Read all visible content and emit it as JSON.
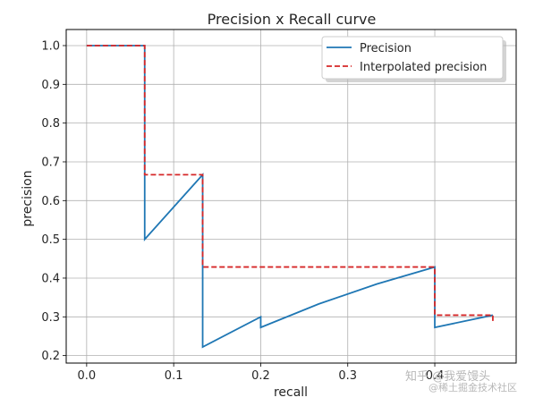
{
  "chart_data": {
    "type": "line",
    "title": "Precision x Recall curve",
    "xlabel": "recall",
    "ylabel": "precision",
    "xlim": [
      -0.0235,
      0.4935
    ],
    "ylim": [
      0.1807,
      1.0415
    ],
    "xticks": [
      0.0,
      0.1,
      0.2,
      0.3,
      0.4
    ],
    "xtick_labels": [
      "0.0",
      "0.1",
      "0.2",
      "0.3",
      "0.4"
    ],
    "yticks": [
      0.2,
      0.3,
      0.4,
      0.5,
      0.6,
      0.7,
      0.8,
      0.9,
      1.0
    ],
    "ytick_labels": [
      "0.2",
      "0.3",
      "0.4",
      "0.5",
      "0.6",
      "0.7",
      "0.8",
      "0.9",
      "1.0"
    ],
    "grid": true,
    "legend_position": "top-right",
    "series": [
      {
        "name": "Precision",
        "color": "#1f77b4",
        "style": "solid",
        "x": [
          0.0,
          0.0667,
          0.0667,
          0.1333,
          0.1333,
          0.2,
          0.2,
          0.2667,
          0.3333,
          0.4,
          0.4,
          0.4667
        ],
        "y": [
          1.0,
          1.0,
          0.5,
          0.6667,
          0.2222,
          0.3,
          0.2727,
          0.3333,
          0.3846,
          0.4286,
          0.2727,
          0.3043
        ]
      },
      {
        "name": "Interpolated precision",
        "color": "#d62728",
        "style": "dashed",
        "x": [
          0.0,
          0.0667,
          0.0667,
          0.1333,
          0.1333,
          0.4,
          0.4,
          0.4667,
          0.4667
        ],
        "y": [
          1.0,
          1.0,
          0.6667,
          0.6667,
          0.4286,
          0.4286,
          0.3043,
          0.3043,
          0.2889
        ]
      }
    ]
  },
  "watermark": {
    "line1": "知乎 @我爱馒头",
    "line2": "@稀土掘金技术社区"
  }
}
